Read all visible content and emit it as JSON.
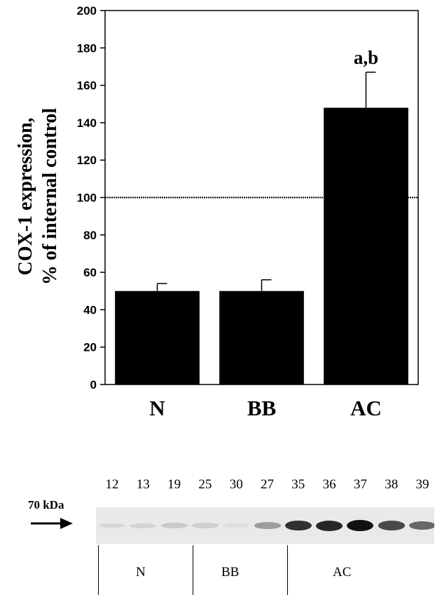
{
  "chart_data": {
    "type": "bar",
    "categories": [
      "N",
      "BB",
      "AC"
    ],
    "values": [
      50,
      50,
      148
    ],
    "errors": [
      4,
      6,
      19
    ],
    "ylabel_line1": "COX-1 expression,",
    "ylabel_line2": "% of internal control",
    "ylim": [
      0,
      200
    ],
    "yticks": [
      "0",
      "20",
      "40",
      "60",
      "80",
      "100",
      "120",
      "140",
      "160",
      "180",
      "200"
    ],
    "reference_line": 100,
    "annotation": "a,b",
    "bar_color": "#000000"
  },
  "blot": {
    "marker": "70 kDa",
    "lanes": [
      "12",
      "13",
      "19",
      "25",
      "30",
      "27",
      "35",
      "36",
      "37",
      "38",
      "39"
    ],
    "band_intensity": [
      0.08,
      0.1,
      0.15,
      0.12,
      0.05,
      0.35,
      0.85,
      0.9,
      1.0,
      0.75,
      0.6
    ],
    "groups": [
      "N",
      "BB",
      "AC"
    ]
  }
}
